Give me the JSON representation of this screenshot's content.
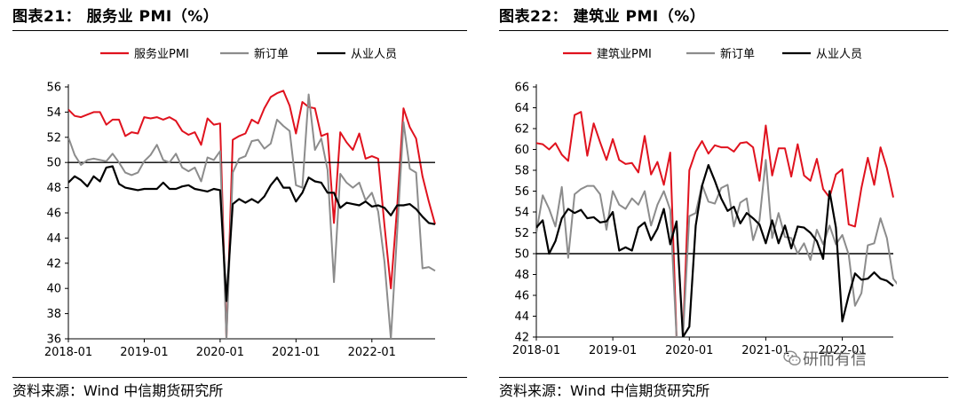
{
  "colors": {
    "red": "#E0121E",
    "gray": "#8C8C8C",
    "black": "#000000"
  },
  "watermark": {
    "text": "研而有信",
    "icon": "wechat-icon"
  },
  "chart_data": [
    {
      "panel": "left",
      "type": "line",
      "title": "图表21： 服务业 PMI（%）",
      "source": "资料来源：Wind 中信期货研究所",
      "x_ticks": [
        "2018-01",
        "2019-01",
        "2020-01",
        "2021-01",
        "2022-01"
      ],
      "x_tick_index": [
        0,
        12,
        24,
        36,
        48
      ],
      "ylim": [
        36,
        56
      ],
      "yticks": [
        36,
        38,
        40,
        42,
        44,
        46,
        48,
        50,
        52,
        54,
        56
      ],
      "reference_line": 50,
      "legend_position": "top",
      "series": [
        {
          "name": "服务业PMI",
          "color": "#E0121E",
          "width": 2,
          "values": [
            54.2,
            53.7,
            53.6,
            53.8,
            54.0,
            54.0,
            53.0,
            53.4,
            53.4,
            52.1,
            52.4,
            52.3,
            53.6,
            53.5,
            53.6,
            53.4,
            53.6,
            53.3,
            52.5,
            52.2,
            52.4,
            51.4,
            53.5,
            53.0,
            53.1,
            36.0,
            51.8,
            52.1,
            52.3,
            53.4,
            53.1,
            54.3,
            55.2,
            55.5,
            55.7,
            54.5,
            52.3,
            54.8,
            54.4,
            54.3,
            52.1,
            52.3,
            45.2,
            52.4,
            51.6,
            51.0,
            52.3,
            50.3,
            50.5,
            50.3,
            45.0,
            40.0,
            46.5,
            54.3,
            52.8,
            51.9,
            48.9,
            46.9,
            45.1
          ]
        },
        {
          "name": "新订单",
          "color": "#8C8C8C",
          "width": 2,
          "values": [
            52.0,
            50.6,
            49.8,
            50.2,
            50.3,
            50.2,
            50.1,
            50.7,
            50.0,
            49.2,
            49.0,
            49.2,
            50.1,
            50.6,
            51.4,
            50.2,
            50.0,
            50.7,
            49.6,
            49.3,
            49.6,
            48.5,
            50.4,
            50.2,
            50.9,
            36.0,
            49.2,
            50.3,
            50.5,
            51.7,
            51.8,
            51.1,
            51.5,
            53.4,
            52.9,
            52.5,
            48.2,
            48.0,
            55.4,
            51.0,
            51.9,
            49.4,
            40.5,
            49.1,
            48.4,
            48.0,
            48.4,
            47.0,
            47.6,
            46.1,
            42.1,
            36.0,
            44.5,
            53.2,
            49.5,
            49.2,
            41.6,
            41.7,
            41.4
          ]
        },
        {
          "name": "从业人员",
          "color": "#000000",
          "width": 2.2,
          "values": [
            48.4,
            48.9,
            48.6,
            48.1,
            48.9,
            48.5,
            49.6,
            49.7,
            48.3,
            48.0,
            47.9,
            47.8,
            47.9,
            47.9,
            47.9,
            48.4,
            47.9,
            47.9,
            48.1,
            48.2,
            47.9,
            47.8,
            47.7,
            47.9,
            47.8,
            39.0,
            46.7,
            47.1,
            46.8,
            47.1,
            46.8,
            47.3,
            48.2,
            48.8,
            48.0,
            48.0,
            46.9,
            47.6,
            48.8,
            48.5,
            48.4,
            47.6,
            47.6,
            46.4,
            46.8,
            46.7,
            46.6,
            46.9,
            46.5,
            46.6,
            46.4,
            45.8,
            46.6,
            46.6,
            46.7,
            46.3,
            45.7,
            45.2,
            45.1
          ]
        }
      ]
    },
    {
      "panel": "right",
      "type": "line",
      "title": "图表22： 建筑业 PMI（%）",
      "source": "资料来源：Wind 中信期货研究所",
      "x_ticks": [
        "2018-01",
        "2019-01",
        "2020-01",
        "2021-01",
        "2022-01"
      ],
      "x_tick_index": [
        0,
        12,
        24,
        36,
        48
      ],
      "ylim": [
        42,
        66
      ],
      "yticks": [
        42,
        44,
        46,
        48,
        50,
        52,
        54,
        56,
        58,
        60,
        62,
        64,
        66
      ],
      "reference_line": 50,
      "legend_position": "top",
      "series": [
        {
          "name": "建筑业PMI",
          "color": "#E0121E",
          "width": 2,
          "values": [
            60.6,
            60.5,
            60.0,
            60.6,
            59.5,
            58.9,
            63.3,
            63.6,
            59.4,
            62.5,
            60.7,
            59.0,
            61.0,
            59.0,
            58.6,
            58.7,
            57.8,
            61.3,
            57.6,
            58.8,
            56.6,
            59.7,
            42.0,
            42.0,
            58.0,
            59.8,
            60.8,
            59.6,
            60.4,
            60.2,
            60.2,
            59.8,
            60.6,
            60.7,
            60.2,
            57.0,
            62.3,
            57.5,
            60.1,
            60.1,
            57.4,
            60.5,
            57.5,
            57.0,
            59.1,
            56.2,
            55.4,
            57.6,
            58.1,
            52.8,
            52.6,
            56.3,
            59.2,
            56.6,
            60.2,
            58.2,
            55.4
          ]
        },
        {
          "name": "新订单",
          "color": "#8C8C8C",
          "width": 2,
          "values": [
            52.0,
            55.6,
            54.3,
            52.6,
            56.4,
            49.6,
            55.7,
            56.2,
            56.5,
            56.5,
            55.7,
            52.3,
            56.0,
            54.7,
            54.3,
            55.3,
            54.7,
            56.0,
            52.7,
            54.7,
            56.0,
            54.2,
            42.0,
            42.0,
            53.6,
            53.9,
            56.6,
            55.0,
            54.8,
            56.3,
            56.6,
            52.6,
            54.9,
            55.3,
            51.3,
            53.2,
            59.0,
            51.5,
            53.9,
            51.6,
            51.5,
            50.0,
            51.0,
            49.4,
            52.3,
            50.9,
            52.7,
            50.9,
            51.8,
            49.9,
            45.0,
            46.2,
            50.8,
            51.0,
            53.4,
            51.5,
            47.6,
            46.8
          ]
        },
        {
          "name": "从业人员",
          "color": "#000000",
          "width": 2.2,
          "values": [
            52.5,
            53.2,
            50.0,
            51.2,
            53.4,
            54.3,
            53.9,
            54.2,
            53.4,
            53.5,
            53.0,
            53.1,
            54.0,
            50.3,
            50.6,
            50.3,
            52.5,
            53.0,
            51.3,
            52.4,
            54.3,
            50.9,
            53.1,
            42.0,
            43.0,
            52.7,
            56.5,
            58.5,
            57.0,
            55.3,
            54.1,
            54.5,
            52.9,
            53.9,
            53.4,
            52.8,
            51.0,
            53.2,
            51.0,
            52.7,
            50.5,
            52.6,
            52.5,
            52.0,
            51.2,
            49.5,
            56.0,
            52.5,
            43.5,
            46.0,
            48.1,
            47.5,
            47.6,
            48.2,
            47.6,
            47.4,
            46.9
          ]
        }
      ]
    }
  ]
}
